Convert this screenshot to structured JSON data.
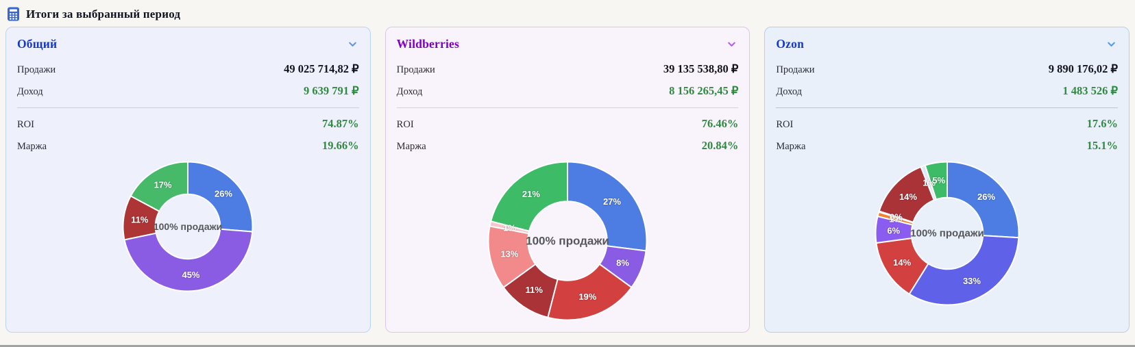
{
  "header": {
    "title": "Итоги за выбранный период",
    "icon": "calculator-icon",
    "icon_color": "#3565d8"
  },
  "cards": [
    {
      "title": "Общий",
      "theme": {
        "title_color": "#1638cf",
        "bg": "#eef1fb",
        "border": "#bdd4f2",
        "divider": "#c3cfe4",
        "chevron": "#5c9ae8"
      },
      "rows": [
        {
          "label": "Продажи",
          "value": "49 025 714,82 ₽"
        },
        {
          "label": "Доход",
          "value": "9 639 791 ₽"
        }
      ],
      "stats": [
        {
          "label": "ROI",
          "value": "74.87%"
        },
        {
          "label": "Маржа",
          "value": "19.66%"
        }
      ]
    },
    {
      "title": "Wildberries",
      "theme": {
        "title_color": "#8000c8",
        "bg": "#f9f3fc",
        "border": "#ddc6ec",
        "divider": "#dcc9e8",
        "chevron": "#b064e0"
      },
      "rows": [
        {
          "label": "Продажи",
          "value": "39 135 538,80 ₽"
        },
        {
          "label": "Доход",
          "value": "8 156 265,45 ₽"
        }
      ],
      "stats": [
        {
          "label": "ROI",
          "value": "76.46%"
        },
        {
          "label": "Маржа",
          "value": "20.84%"
        }
      ]
    },
    {
      "title": "Ozon",
      "theme": {
        "title_color": "#1638cf",
        "bg": "#e9f0fa",
        "border": "#b5d0ee",
        "divider": "#a9c9e9",
        "chevron": "#5c9ae8"
      },
      "rows": [
        {
          "label": "Продажи",
          "value": "9 890 176,02 ₽"
        },
        {
          "label": "Доход",
          "value": "1 483 526 ₽"
        }
      ],
      "stats": [
        {
          "label": "ROI",
          "value": "17.6%"
        },
        {
          "label": "Маржа",
          "value": "15.1%"
        }
      ]
    }
  ],
  "chart_data": [
    {
      "type": "pie",
      "subtype": "donut",
      "title": "Общий",
      "center_label": "100% продажи",
      "labels": [
        "26%",
        "45%",
        "11%",
        "17%"
      ],
      "values": [
        26,
        45,
        11,
        17
      ],
      "colors": [
        "#4d7de2",
        "#8a5ce4",
        "#ad3536",
        "#46ba69"
      ],
      "legend": "off",
      "start_angle_deg": 0,
      "direction": "clockwise"
    },
    {
      "type": "pie",
      "subtype": "donut",
      "title": "Wildberries",
      "center_label": "100% продажи",
      "labels": [
        "27%",
        "8%",
        "19%",
        "11%",
        "13%",
        "1%",
        "21%"
      ],
      "values": [
        27,
        8,
        19,
        11,
        13,
        1,
        21
      ],
      "colors": [
        "#4d7de2",
        "#8a5ce4",
        "#d24040",
        "#a93336",
        "#f28a8c",
        "#f7c6cc",
        "#3ebb66"
      ],
      "legend": "off",
      "start_angle_deg": 0,
      "direction": "clockwise"
    },
    {
      "type": "pie",
      "subtype": "donut",
      "title": "Ozon",
      "center_label": "100% продажи",
      "labels": [
        "26%",
        "33%",
        "14%",
        "6%",
        "1%",
        "0%",
        "14%",
        "1%",
        "5%"
      ],
      "values": [
        26,
        33,
        14,
        6,
        1,
        0.2,
        14,
        1,
        5
      ],
      "colors": [
        "#4d7de2",
        "#5f62e8",
        "#d24040",
        "#8a5cf0",
        "#f58231",
        "#f0f3f8",
        "#a93336",
        "#dfe8f4",
        "#3ebb66"
      ],
      "legend": "off",
      "start_angle_deg": 0,
      "direction": "clockwise"
    }
  ]
}
